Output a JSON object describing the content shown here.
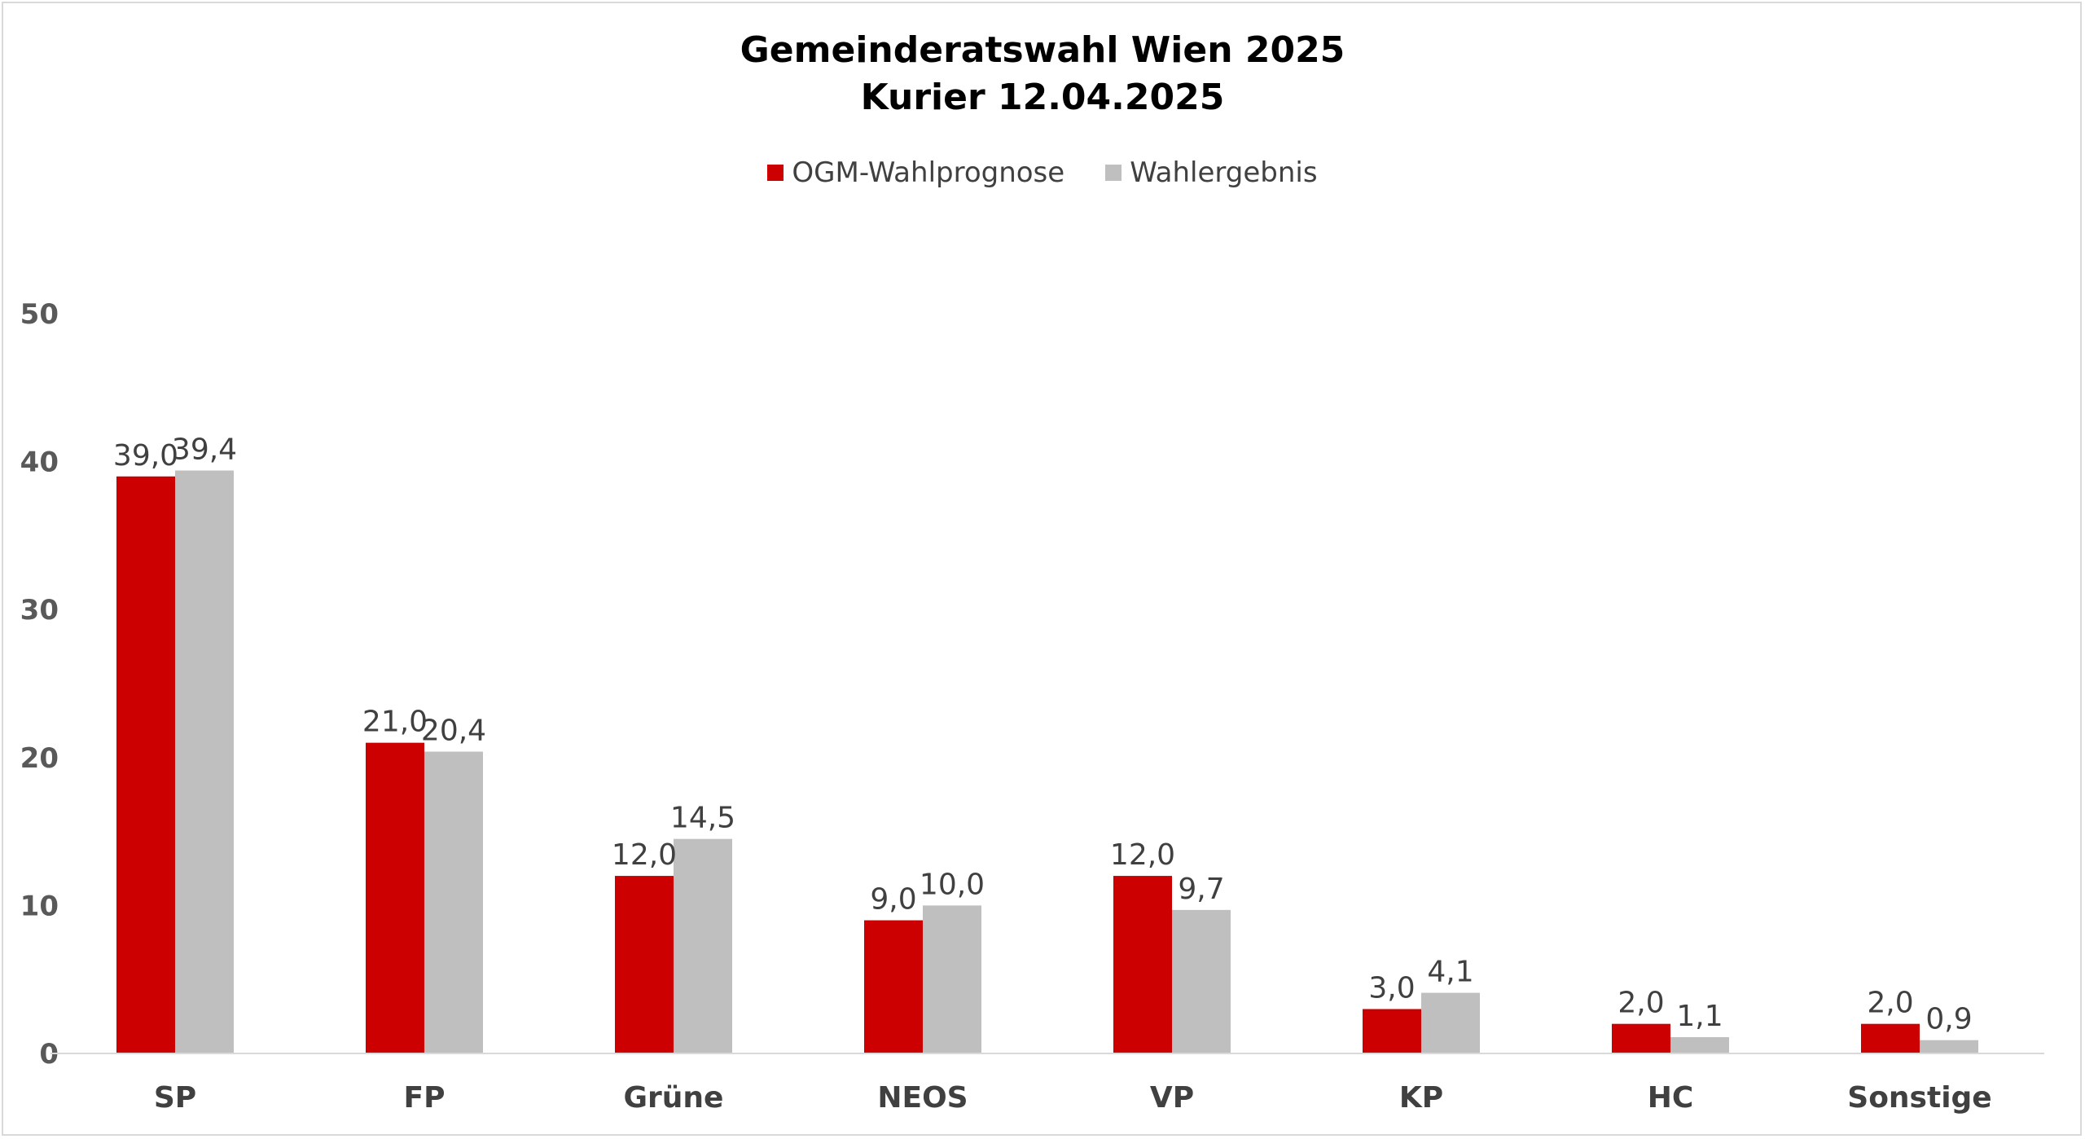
{
  "chart_data": {
    "type": "bar",
    "title": "Gemeinderatswahl Wien 2025",
    "subtitle": "Kurier 12.04.2025",
    "categories": [
      "SP",
      "FP",
      "Grüne",
      "NEOS",
      "VP",
      "KP",
      "HC",
      "Sonstige"
    ],
    "series": [
      {
        "name": "OGM-Wahlprognose",
        "color": "#cc0000",
        "values": [
          39.0,
          21.0,
          12.0,
          9.0,
          12.0,
          3.0,
          2.0,
          2.0
        ],
        "labels": [
          "39,0",
          "21,0",
          "12,0",
          "9,0",
          "12,0",
          "3,0",
          "2,0",
          "2,0"
        ]
      },
      {
        "name": "Wahlergebnis",
        "color": "#bfbfbf",
        "values": [
          39.4,
          20.4,
          14.5,
          10.0,
          9.7,
          4.1,
          1.1,
          0.9
        ],
        "labels": [
          "39,4",
          "20,4",
          "14,5",
          "10,0",
          "9,7",
          "4,1",
          "1,1",
          "0,9"
        ]
      }
    ],
    "ylim": [
      0,
      50
    ],
    "yticks": [
      0,
      10,
      20,
      30,
      40,
      50
    ],
    "xlabel": "",
    "ylabel": "",
    "grid": false,
    "legend_position": "top"
  }
}
